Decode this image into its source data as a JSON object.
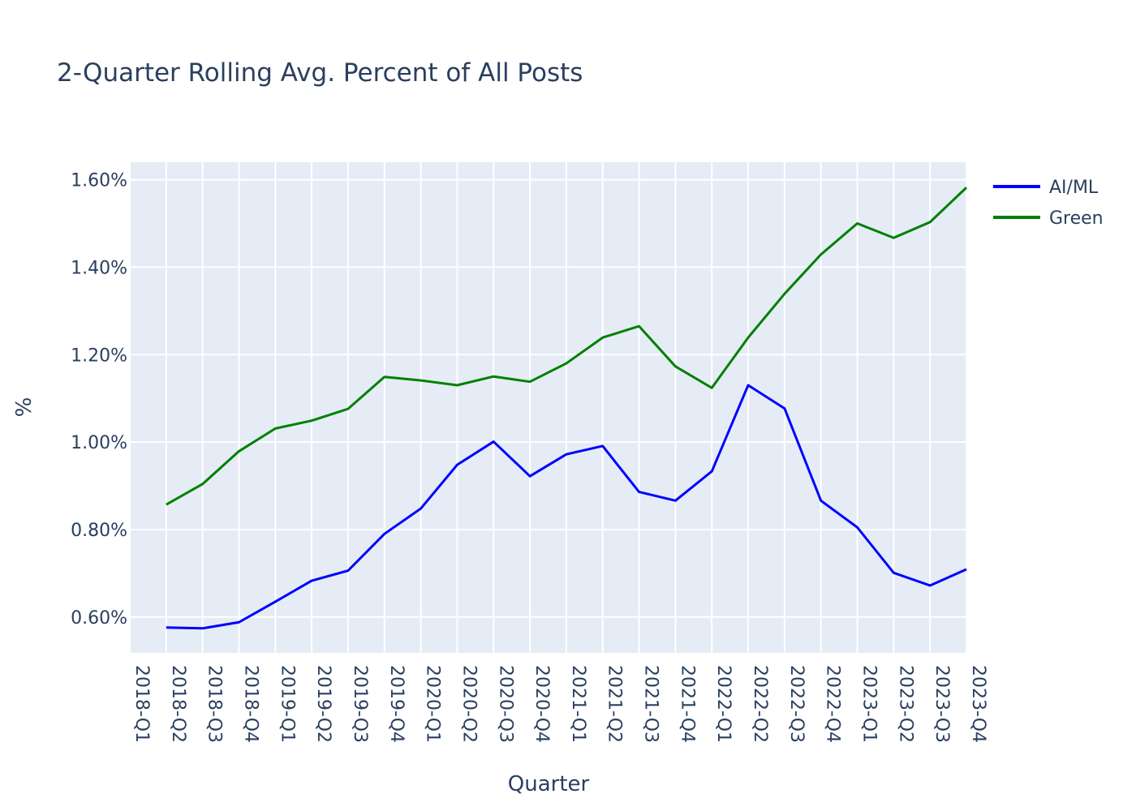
{
  "chart_data": {
    "type": "line",
    "title": "2-Quarter Rolling Avg. Percent of All Posts",
    "xlabel": "Quarter",
    "ylabel": "%",
    "categories": [
      "2018-Q1",
      "2018-Q2",
      "2018-Q3",
      "2018-Q4",
      "2019-Q1",
      "2019-Q2",
      "2019-Q3",
      "2019-Q4",
      "2020-Q1",
      "2020-Q2",
      "2020-Q3",
      "2020-Q4",
      "2021-Q1",
      "2021-Q2",
      "2021-Q3",
      "2021-Q4",
      "2022-Q1",
      "2022-Q2",
      "2022-Q3",
      "2022-Q4",
      "2023-Q1",
      "2023-Q2",
      "2023-Q3",
      "2023-Q4"
    ],
    "y_ticks": [
      0.6,
      0.8,
      1.0,
      1.2,
      1.4,
      1.6
    ],
    "y_tick_labels": [
      "0.60%",
      "0.80%",
      "1.00%",
      "1.20%",
      "1.40%",
      "1.60%"
    ],
    "ylim": [
      0.518,
      1.64
    ],
    "grid": true,
    "legend_position": "top-right",
    "series": [
      {
        "name": "AI/ML",
        "color": "#0000ff",
        "values": [
          null,
          0.576,
          0.574,
          0.588,
          0.635,
          0.683,
          0.706,
          0.79,
          0.848,
          0.948,
          1.001,
          0.922,
          0.972,
          0.991,
          0.886,
          0.866,
          0.933,
          1.13,
          1.077,
          0.866,
          0.805,
          0.701,
          0.672,
          0.709
        ]
      },
      {
        "name": "Green",
        "color": "#008000",
        "values": [
          null,
          0.857,
          0.904,
          0.979,
          1.031,
          1.049,
          1.076,
          1.149,
          1.141,
          1.13,
          1.15,
          1.138,
          1.18,
          1.239,
          1.265,
          1.173,
          1.124,
          1.239,
          1.339,
          1.429,
          1.5,
          1.467,
          1.503,
          1.582
        ]
      }
    ]
  }
}
